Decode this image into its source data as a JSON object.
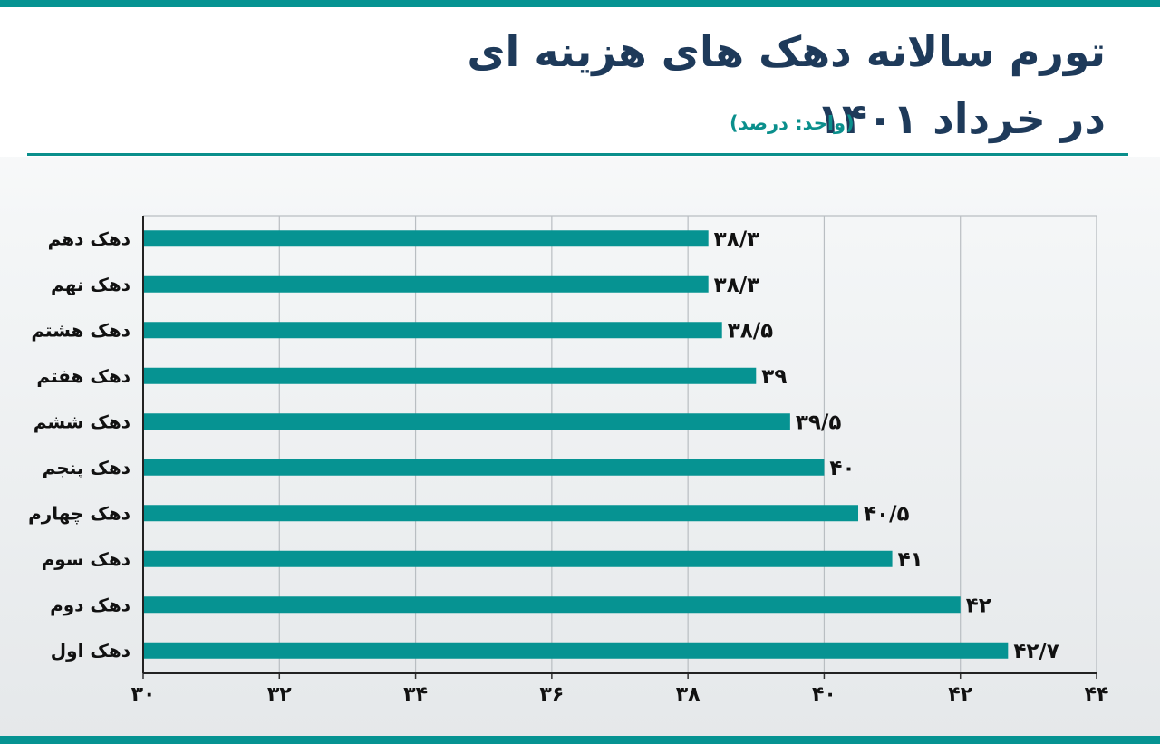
{
  "title": {
    "line1": "تورم سالانه دهک های هزینه ای",
    "line2": "در خرداد ۱۴۰۱",
    "unit": "(واحد: درصد)"
  },
  "colors": {
    "bar": "#069392",
    "title": "#1e3a5a",
    "accent": "#0a8f8c",
    "text": "#111111",
    "grid": "#b9bec2"
  },
  "chart_data": {
    "type": "bar",
    "orientation": "horizontal",
    "categories": [
      "دهک دهم",
      "دهک نهم",
      "دهک هشتم",
      "دهک هفتم",
      "دهک ششم",
      "دهک پنجم",
      "دهک چهارم",
      "دهک سوم",
      "دهک دوم",
      "دهک اول"
    ],
    "values": [
      38.3,
      38.3,
      38.5,
      39,
      39.5,
      40,
      40.5,
      41,
      42,
      42.7
    ],
    "value_labels": [
      "۳۸/۳",
      "۳۸/۳",
      "۳۸/۵",
      "۳۹",
      "۳۹/۵",
      "۴۰",
      "۴۰/۵",
      "۴۱",
      "۴۲",
      "۴۲/۷"
    ],
    "xlim": [
      30,
      44
    ],
    "ticks": [
      30,
      32,
      34,
      36,
      38,
      40,
      42,
      44
    ],
    "tick_labels": [
      "۳۰",
      "۳۲",
      "۳۴",
      "۳۶",
      "۳۸",
      "۴۰",
      "۴۲",
      "۴۴"
    ],
    "grid": true
  }
}
